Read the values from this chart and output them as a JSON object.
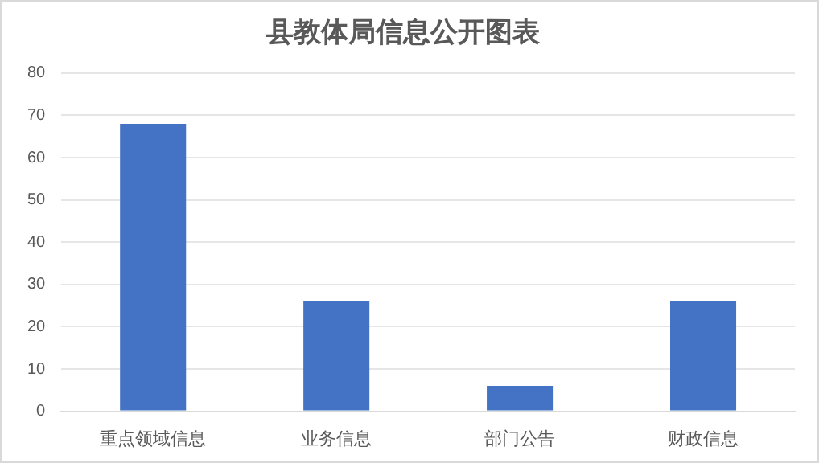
{
  "chart_data": {
    "type": "bar",
    "title": "县教体局信息公开图表",
    "categories": [
      "重点领域信息",
      "业务信息",
      "部门公告",
      "财政信息"
    ],
    "values": [
      68,
      26,
      6,
      26
    ],
    "color": "#4472c4",
    "ylim": [
      0,
      80
    ],
    "yticks": [
      0,
      10,
      20,
      30,
      40,
      50,
      60,
      70,
      80
    ],
    "grid": "y",
    "legend": false
  }
}
